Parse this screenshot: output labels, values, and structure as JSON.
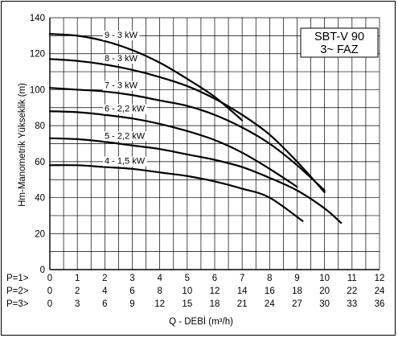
{
  "chart_data": {
    "type": "line",
    "title_lines": [
      "SBT-V 90",
      "3~ FAZ"
    ],
    "ylabel": "Hm-Manometrik Yükseklik (m)",
    "xlabel": "Q - DEBİ (m³/h)",
    "ylim": [
      0,
      140
    ],
    "yticks": [
      0,
      20,
      40,
      60,
      80,
      100,
      120,
      140
    ],
    "xlim": [
      0,
      12
    ],
    "grid": true,
    "x_rows": [
      {
        "label": "P=1>",
        "ticks": [
          "0",
          "1",
          "2",
          "3",
          "4",
          "5",
          "6",
          "7",
          "8",
          "9",
          "10",
          "11",
          "12"
        ]
      },
      {
        "label": "P=2>",
        "ticks": [
          "0",
          "2",
          "4",
          "6",
          "8",
          "10",
          "12",
          "14",
          "16",
          "18",
          "20",
          "22",
          "24"
        ]
      },
      {
        "label": "P=3>",
        "ticks": [
          "0",
          "3",
          "6",
          "9",
          "12",
          "15",
          "18",
          "21",
          "24",
          "27",
          "30",
          "33",
          "36"
        ]
      }
    ],
    "series": [
      {
        "name": "9 - 3 kW",
        "x": [
          0,
          1,
          2,
          3,
          4,
          5,
          6,
          7
        ],
        "y": [
          131,
          130,
          127,
          122,
          115,
          106,
          96,
          83
        ]
      },
      {
        "name": "8 - 3 kW",
        "x": [
          0,
          1,
          2,
          3,
          4,
          5,
          6,
          7,
          8,
          9,
          10
        ],
        "y": [
          117,
          116,
          114,
          111,
          107,
          102,
          95,
          86,
          75,
          60,
          43
        ]
      },
      {
        "name": "7 - 3 kW",
        "x": [
          0,
          1,
          2,
          3,
          4,
          5,
          6,
          7,
          8,
          9,
          10
        ],
        "y": [
          101,
          100,
          99,
          97,
          94,
          91,
          86,
          79,
          70,
          58,
          44
        ]
      },
      {
        "name": "6 - 2,2 kW",
        "x": [
          0,
          1,
          2,
          3,
          4,
          5,
          6,
          7,
          8,
          9
        ],
        "y": [
          88,
          87.5,
          86,
          84,
          81,
          77,
          72,
          65,
          56,
          46
        ]
      },
      {
        "name": "5 - 2,2 kW",
        "x": [
          0,
          1,
          2,
          3,
          4,
          5,
          6,
          7,
          8,
          9,
          10,
          10.6
        ],
        "y": [
          73,
          72.5,
          71,
          69,
          67,
          64,
          61,
          57,
          51,
          44,
          34,
          26
        ]
      },
      {
        "name": "4 - 1,5 kW",
        "x": [
          0,
          1,
          2,
          3,
          4,
          5,
          6,
          7,
          8,
          9.2
        ],
        "y": [
          58,
          58,
          57,
          56,
          54,
          52,
          49,
          45,
          40,
          27
        ]
      }
    ]
  }
}
